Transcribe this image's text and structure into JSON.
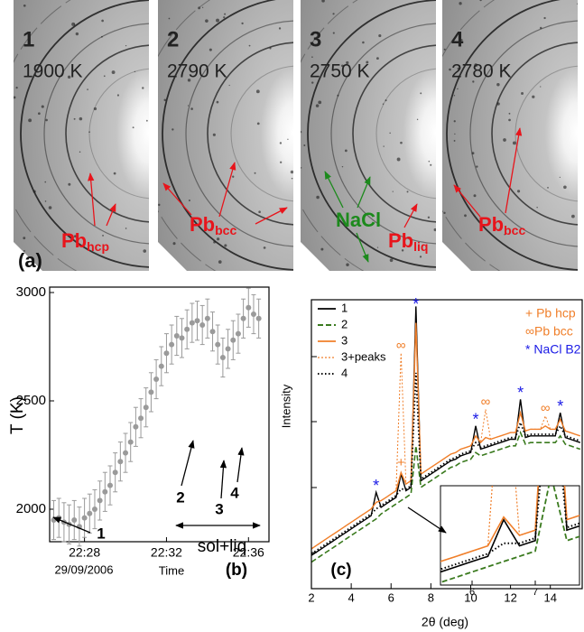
{
  "panel_a": {
    "label": "(a)",
    "images": [
      {
        "number": "1",
        "temperature": "1900 K",
        "phases": [
          {
            "text": "Pb",
            "subscript": "hcp",
            "color": "#e8141b"
          }
        ]
      },
      {
        "number": "2",
        "temperature": "2790 K",
        "phases": [
          {
            "text": "Pb",
            "subscript": "bcc",
            "color": "#e8141b"
          }
        ]
      },
      {
        "number": "3",
        "temperature": "2750 K",
        "phases": [
          {
            "text": "NaCl",
            "color": "#1c8a1c"
          },
          {
            "text": "Pb",
            "subscript": "liq",
            "color": "#e8141b"
          }
        ]
      },
      {
        "number": "4",
        "temperature": "2780 K",
        "phases": [
          {
            "text": "Pb",
            "subscript": "bcc",
            "color": "#e8141b"
          }
        ]
      }
    ]
  },
  "chart_data": [
    {
      "type": "scatter",
      "panel_label": "(b)",
      "x_label": "Time",
      "x_sublabel": "29/09/2006",
      "y_label": "T (K)",
      "color": "#9a9a9a",
      "x": [
        26.5,
        26.75,
        27,
        27.25,
        27.5,
        27.75,
        28,
        28.25,
        28.5,
        28.75,
        29,
        29.25,
        29.5,
        29.75,
        30,
        30.25,
        30.5,
        30.75,
        31,
        31.25,
        31.5,
        31.75,
        32,
        32.25,
        32.5,
        32.75,
        33,
        33.25,
        33.5,
        33.75,
        34,
        34.25,
        34.5,
        34.75,
        35,
        35.25,
        35.5,
        35.75,
        36,
        36.25,
        36.5
      ],
      "values": [
        1950,
        1960,
        1940,
        1930,
        1950,
        1920,
        1960,
        1980,
        2000,
        2040,
        2080,
        2110,
        2170,
        2220,
        2260,
        2310,
        2380,
        2420,
        2470,
        2540,
        2600,
        2660,
        2720,
        2760,
        2800,
        2790,
        2830,
        2860,
        2870,
        2850,
        2880,
        2820,
        2760,
        2700,
        2740,
        2780,
        2810,
        2880,
        2930,
        2900,
        2880
      ],
      "errors": [
        90,
        90,
        90,
        90,
        90,
        90,
        90,
        90,
        90,
        90,
        90,
        90,
        90,
        90,
        90,
        90,
        90,
        90,
        90,
        90,
        90,
        90,
        90,
        90,
        90,
        90,
        90,
        90,
        90,
        90,
        90,
        90,
        90,
        90,
        90,
        90,
        90,
        90,
        90,
        90,
        90
      ],
      "xlim": [
        26.3,
        37.0
      ],
      "ylim": [
        1850,
        3025
      ],
      "xticks": [
        {
          "value": 28,
          "label": "22:28"
        },
        {
          "value": 32,
          "label": "22:32"
        },
        {
          "value": 36,
          "label": "22:36"
        }
      ],
      "yticks": [
        2000,
        2500,
        3000
      ],
      "annotations": [
        "1",
        "2",
        "3",
        "4",
        "sol+liq"
      ]
    },
    {
      "type": "line",
      "panel_label": "(c)",
      "x_label": "2θ (deg)",
      "y_label": "Intensity",
      "x": [
        2,
        2.25,
        2.5,
        2.75,
        3,
        3.25,
        3.5,
        3.75,
        4,
        4.25,
        4.5,
        4.75,
        5,
        5.25,
        5.5,
        5.75,
        6,
        6.25,
        6.5,
        6.75,
        7,
        7.25,
        7.5,
        7.75,
        8,
        8.25,
        8.5,
        8.75,
        9,
        9.25,
        9.5,
        9.75,
        10,
        10.25,
        10.5,
        10.75,
        11,
        11.25,
        11.5,
        11.75,
        12,
        12.25,
        12.5,
        12.75,
        13,
        13.25,
        13.5,
        13.75,
        14,
        14.25,
        14.5,
        14.75,
        15,
        15.25,
        15.5
      ],
      "series": [
        {
          "name": "1",
          "color": "#000000",
          "style": "solid",
          "values": [
            2.5,
            2.6,
            2.7,
            2.8,
            2.9,
            3.0,
            3.1,
            3.2,
            3.3,
            3.4,
            3.5,
            3.6,
            3.7,
            4.4,
            3.95,
            4.05,
            4.15,
            4.25,
            4.95,
            4.45,
            4.55,
            10.0,
            4.75,
            4.85,
            4.95,
            5.05,
            5.15,
            5.25,
            5.35,
            5.4,
            5.5,
            5.55,
            5.6,
            6.4,
            5.7,
            5.75,
            5.8,
            5.85,
            5.9,
            5.95,
            6.0,
            6.0,
            7.2,
            6.05,
            6.1,
            6.1,
            6.1,
            6.1,
            6.1,
            6.1,
            6.8,
            6.05,
            6.0,
            5.95,
            5.9
          ]
        },
        {
          "name": "2",
          "color": "#3a7a1e",
          "style": "dashed",
          "values": [
            2.3,
            2.4,
            2.5,
            2.6,
            2.7,
            2.8,
            2.9,
            3.0,
            3.1,
            3.2,
            3.3,
            3.4,
            3.5,
            3.6,
            3.75,
            3.85,
            3.95,
            4.05,
            4.15,
            4.25,
            4.35,
            5.8,
            4.55,
            4.65,
            4.75,
            4.85,
            4.95,
            5.05,
            5.15,
            5.2,
            5.3,
            5.35,
            5.4,
            5.6,
            5.5,
            5.55,
            5.6,
            5.65,
            5.7,
            5.75,
            5.8,
            5.8,
            6.2,
            5.85,
            5.9,
            5.9,
            5.9,
            5.9,
            5.9,
            5.9,
            6.1,
            5.85,
            5.8,
            5.75,
            5.7
          ]
        },
        {
          "name": "3",
          "color": "#f07f2a",
          "style": "solid",
          "values": [
            2.7,
            2.8,
            2.9,
            3.0,
            3.1,
            3.2,
            3.3,
            3.4,
            3.5,
            3.6,
            3.7,
            3.8,
            3.9,
            4.1,
            4.15,
            4.25,
            4.35,
            4.45,
            5.0,
            4.65,
            4.75,
            9.5,
            4.95,
            5.05,
            5.15,
            5.25,
            5.35,
            5.45,
            5.55,
            5.6,
            5.7,
            5.75,
            5.8,
            6.1,
            5.9,
            6.05,
            6.0,
            6.05,
            6.1,
            6.15,
            6.2,
            6.2,
            6.8,
            6.25,
            6.3,
            6.3,
            6.3,
            6.4,
            6.3,
            6.3,
            6.6,
            6.25,
            6.2,
            6.15,
            6.1
          ]
        },
        {
          "name": "3+peaks",
          "color": "#f07f2a",
          "style": "dotted",
          "values": [
            2.7,
            2.8,
            2.9,
            3.0,
            3.1,
            3.2,
            3.3,
            3.4,
            3.5,
            3.6,
            3.7,
            3.8,
            3.9,
            4.1,
            4.15,
            4.25,
            4.35,
            4.45,
            8.6,
            4.65,
            4.75,
            9.5,
            4.95,
            5.05,
            5.15,
            5.25,
            5.35,
            5.45,
            5.55,
            5.6,
            5.7,
            5.75,
            5.8,
            6.1,
            5.9,
            6.9,
            6.0,
            6.05,
            6.1,
            6.15,
            6.2,
            6.2,
            6.8,
            6.25,
            6.3,
            6.3,
            6.3,
            6.7,
            6.3,
            6.3,
            6.6,
            6.25,
            6.2,
            6.15,
            6.1
          ]
        },
        {
          "name": "4",
          "color": "#000000",
          "style": "dots",
          "values": [
            2.55,
            2.65,
            2.75,
            2.85,
            2.95,
            3.05,
            3.15,
            3.25,
            3.35,
            3.45,
            3.55,
            3.65,
            3.75,
            3.9,
            4.0,
            4.1,
            4.2,
            4.3,
            4.5,
            4.5,
            4.6,
            8.0,
            4.8,
            4.9,
            5.0,
            5.1,
            5.2,
            5.3,
            5.4,
            5.45,
            5.55,
            5.6,
            5.65,
            5.9,
            5.75,
            5.8,
            5.85,
            5.9,
            5.95,
            6.0,
            6.05,
            6.05,
            6.5,
            6.1,
            6.15,
            6.15,
            6.15,
            6.15,
            6.15,
            6.15,
            6.4,
            6.1,
            6.05,
            6.0,
            5.95
          ]
        }
      ],
      "xlim": [
        2,
        15.6
      ],
      "ylim": [
        1.5,
        10.2
      ],
      "xticks": [
        2,
        4,
        6,
        8,
        10,
        12,
        14
      ],
      "inset": {
        "xlim": [
          5.5,
          7.7
        ],
        "ylim": [
          3.7,
          5.6
        ],
        "xticks": [
          6,
          7
        ]
      },
      "peak_markers": {
        "nacl": "*",
        "bcc": "∞",
        "hcp": "+"
      },
      "legend_notes": [
        {
          "text": "+ Pb hcp",
          "color": "#f07f2a"
        },
        {
          "text": "∞Pb bcc",
          "color": "#f07f2a"
        },
        {
          "text": "* NaCl B2",
          "color": "#1a1ae6"
        }
      ]
    }
  ]
}
